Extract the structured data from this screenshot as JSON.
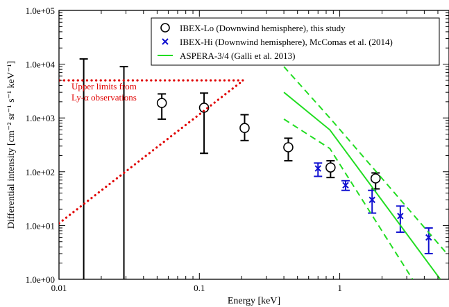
{
  "chart_data": {
    "type": "scatter",
    "xlabel": "Energy [keV]",
    "ylabel": "Differential intensity [cm⁻² sr⁻¹ s⁻¹ keV⁻¹]",
    "x_scale": "log",
    "y_scale": "log",
    "xlim": [
      0.01,
      6
    ],
    "ylim": [
      1.0,
      100000
    ],
    "grid": false,
    "legend_position": "top-right",
    "x_ticks": [
      {
        "value": 0.01,
        "label": "0.01"
      },
      {
        "value": 0.1,
        "label": "0.1"
      },
      {
        "value": 1,
        "label": "1"
      }
    ],
    "y_ticks": [
      {
        "value": 1,
        "label": "1.0e+00"
      },
      {
        "value": 10,
        "label": "1.0e+01"
      },
      {
        "value": 100,
        "label": "1.0e+02"
      },
      {
        "value": 1000,
        "label": "1.0e+03"
      },
      {
        "value": 10000,
        "label": "1.0e+04"
      },
      {
        "value": 100000,
        "label": "1.0e+05"
      }
    ],
    "legend": [
      {
        "label": "IBEX-Lo (Downwind hemisphere), this study",
        "marker": "circle",
        "color": "#000000"
      },
      {
        "label": "IBEX-Hi (Downwind hemisphere), McComas et al. (2014)",
        "marker": "x",
        "color": "#1010d0"
      },
      {
        "label": "ASPERA-3/4 (Galli et al. 2013)",
        "marker": "line",
        "color": "#22dd22"
      }
    ],
    "annotation": {
      "lines": [
        "Upper limits from",
        "Ly-α observations"
      ],
      "color": "#e00000"
    },
    "series": [
      {
        "name": "IBEX-Lo (Downwind hemisphere), this study",
        "color": "#000000",
        "marker": "circle",
        "points": [
          {
            "x": 0.015,
            "y": null,
            "ylo": 1.0,
            "yhi": 12500
          },
          {
            "x": 0.029,
            "y": null,
            "ylo": 1.0,
            "yhi": 9000
          },
          {
            "x": 0.054,
            "y": 1900,
            "ylo": 950,
            "yhi": 2800
          },
          {
            "x": 0.108,
            "y": 1550,
            "ylo": 220,
            "yhi": 2900
          },
          {
            "x": 0.21,
            "y": 650,
            "ylo": 380,
            "yhi": 1150
          },
          {
            "x": 0.43,
            "y": 285,
            "ylo": 160,
            "yhi": 420
          },
          {
            "x": 0.86,
            "y": 120,
            "ylo": 78,
            "yhi": 160
          },
          {
            "x": 1.8,
            "y": 75,
            "ylo": 48,
            "yhi": 95
          }
        ]
      },
      {
        "name": "IBEX-Hi (Downwind hemisphere), McComas et al. (2014)",
        "color": "#1010d0",
        "marker": "x",
        "points": [
          {
            "x": 0.7,
            "y": 115,
            "ylo": 82,
            "yhi": 145
          },
          {
            "x": 1.1,
            "y": 56,
            "ylo": 45,
            "yhi": 68
          },
          {
            "x": 1.7,
            "y": 30,
            "ylo": 17,
            "yhi": 45
          },
          {
            "x": 2.7,
            "y": 15,
            "ylo": 7.5,
            "yhi": 23
          },
          {
            "x": 4.3,
            "y": 6,
            "ylo": 3,
            "yhi": 9
          }
        ]
      },
      {
        "name": "ASPERA-3/4 (Galli et al. 2013)",
        "color": "#22dd22",
        "style": "solid",
        "points": [
          {
            "x": 0.4,
            "y": 3000
          },
          {
            "x": 0.85,
            "y": 600
          },
          {
            "x": 5.2,
            "y": 1
          }
        ]
      },
      {
        "name": "ASPERA-3/4 upper bound",
        "color": "#22dd22",
        "style": "dashed",
        "points": [
          {
            "x": 0.4,
            "y": 9000
          },
          {
            "x": 0.85,
            "y": 1000
          },
          {
            "x": 5.8,
            "y": 3
          }
        ]
      },
      {
        "name": "ASPERA-3/4 lower bound",
        "color": "#22dd22",
        "style": "dashed",
        "points": [
          {
            "x": 0.4,
            "y": 950
          },
          {
            "x": 0.85,
            "y": 270
          },
          {
            "x": 3.3,
            "y": 1
          }
        ]
      },
      {
        "name": "Ly-α upper limits",
        "color": "#e00000",
        "style": "dotted",
        "points": [
          {
            "x": 0.01,
            "y": 11
          },
          {
            "x": 0.205,
            "y": 5000
          },
          {
            "x": 0.01,
            "y": 5000
          }
        ]
      }
    ]
  }
}
